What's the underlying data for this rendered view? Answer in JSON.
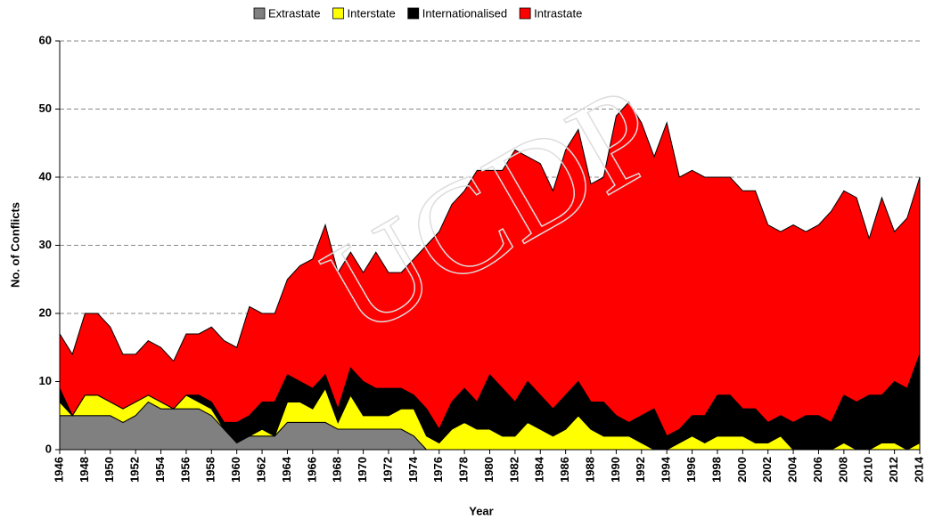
{
  "chart_data": {
    "type": "stacked_area",
    "watermark": "UCDP",
    "xlabel": "Year",
    "ylabel": "No. of Conflicts",
    "x": [
      1946,
      1947,
      1948,
      1949,
      1950,
      1951,
      1952,
      1953,
      1954,
      1955,
      1956,
      1957,
      1958,
      1959,
      1960,
      1961,
      1962,
      1963,
      1964,
      1965,
      1966,
      1967,
      1968,
      1969,
      1970,
      1971,
      1972,
      1973,
      1974,
      1975,
      1976,
      1977,
      1978,
      1979,
      1980,
      1981,
      1982,
      1983,
      1984,
      1985,
      1986,
      1987,
      1988,
      1989,
      1990,
      1991,
      1992,
      1993,
      1994,
      1995,
      1996,
      1997,
      1998,
      1999,
      2000,
      2001,
      2002,
      2003,
      2004,
      2005,
      2006,
      2007,
      2008,
      2009,
      2010,
      2011,
      2012,
      2013,
      2014
    ],
    "xlim": [
      1946,
      2014
    ],
    "xticks": [
      1946,
      1948,
      1950,
      1952,
      1954,
      1956,
      1958,
      1960,
      1962,
      1964,
      1966,
      1968,
      1970,
      1972,
      1974,
      1976,
      1978,
      1980,
      1982,
      1984,
      1986,
      1988,
      1990,
      1992,
      1994,
      1996,
      1998,
      2000,
      2002,
      2004,
      2006,
      2008,
      2010,
      2012,
      2014
    ],
    "ylim": [
      0,
      60
    ],
    "yticks": [
      0,
      10,
      20,
      30,
      40,
      50,
      60
    ],
    "grid": true,
    "legend": "top",
    "series": [
      {
        "name": "Extrastate",
        "color": "#808080",
        "values": [
          5,
          5,
          5,
          5,
          5,
          4,
          5,
          7,
          6,
          6,
          6,
          6,
          5,
          3,
          1,
          2,
          2,
          2,
          4,
          4,
          4,
          4,
          3,
          3,
          3,
          3,
          3,
          3,
          2,
          0,
          0,
          0,
          0,
          0,
          0,
          0,
          0,
          0,
          0,
          0,
          0,
          0,
          0,
          0,
          0,
          0,
          0,
          0,
          0,
          0,
          0,
          0,
          0,
          0,
          0,
          0,
          0,
          0,
          0,
          0,
          0,
          0,
          0,
          0,
          0,
          0,
          0,
          0,
          0
        ]
      },
      {
        "name": "Interstate",
        "color": "#ffff00",
        "values": [
          2,
          0,
          3,
          3,
          2,
          2,
          2,
          1,
          1,
          0,
          2,
          1,
          1,
          0,
          0,
          0,
          1,
          0,
          3,
          3,
          2,
          5,
          1,
          5,
          2,
          2,
          2,
          3,
          4,
          2,
          1,
          3,
          4,
          3,
          3,
          2,
          2,
          4,
          3,
          2,
          3,
          5,
          3,
          2,
          2,
          2,
          1,
          0,
          0,
          1,
          2,
          1,
          2,
          2,
          2,
          1,
          1,
          2,
          0,
          0,
          0,
          0,
          1,
          0,
          0,
          1,
          1,
          0,
          1
        ]
      },
      {
        "name": "Internationalised",
        "color": "#000000",
        "values": [
          2,
          0,
          0,
          0,
          0,
          0,
          0,
          0,
          0,
          0,
          0,
          1,
          1,
          1,
          3,
          3,
          4,
          5,
          4,
          3,
          3,
          2,
          2,
          4,
          5,
          4,
          4,
          3,
          2,
          4,
          2,
          4,
          5,
          4,
          8,
          7,
          5,
          6,
          5,
          4,
          5,
          5,
          4,
          5,
          3,
          2,
          4,
          6,
          2,
          2,
          3,
          4,
          6,
          6,
          4,
          5,
          3,
          3,
          4,
          5,
          5,
          4,
          7,
          7,
          8,
          7,
          9,
          9,
          13
        ]
      },
      {
        "name": "Intrastate",
        "color": "#ff0000",
        "values": [
          8,
          9,
          12,
          12,
          11,
          8,
          7,
          8,
          8,
          7,
          9,
          9,
          11,
          12,
          11,
          16,
          13,
          13,
          14,
          17,
          19,
          22,
          20,
          17,
          16,
          20,
          17,
          17,
          20,
          24,
          29,
          29,
          29,
          34,
          30,
          32,
          37,
          33,
          34,
          32,
          36,
          37,
          32,
          33,
          44,
          47,
          43,
          37,
          46,
          37,
          36,
          35,
          32,
          32,
          32,
          32,
          29,
          27,
          29,
          27,
          28,
          31,
          30,
          30,
          23,
          29,
          22,
          25,
          26
        ]
      }
    ]
  }
}
